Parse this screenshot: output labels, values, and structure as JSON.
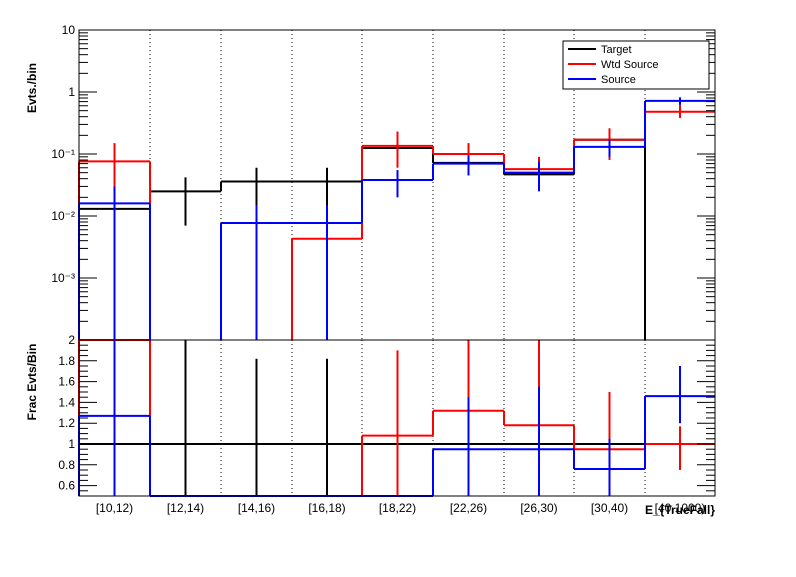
{
  "chart_data": {
    "type": "line",
    "categories": [
      "[10,12)",
      "[12,14)",
      "[14,16)",
      "[16,18)",
      "[18,22)",
      "[22,26)",
      "[26,30)",
      "[30,40)",
      "[40,1000)"
    ],
    "x_title": "E_{TrueFall}",
    "top_panel": {
      "ylabel": "Evts./bin",
      "yscale": "log",
      "ylim": [
        0.0001,
        10
      ],
      "y_tick_labels": [
        "10",
        "1",
        "10⁻¹",
        "10⁻²",
        "10⁻³"
      ],
      "y_tick_values": [
        10,
        1,
        0.1,
        0.01,
        0.001
      ],
      "series": [
        {
          "name": "Target",
          "color": "#000000",
          "values": [
            0.013,
            0.025,
            0.036,
            0.036,
            0.125,
            0.072,
            0.047,
            0.17,
            null
          ],
          "err_low": [
            0.013,
            0.007,
            0.0001,
            0.0001,
            null,
            null,
            null,
            null,
            null
          ],
          "err_high": [
            0.03,
            0.042,
            0.06,
            0.06,
            null,
            null,
            null,
            null,
            null
          ]
        },
        {
          "name": "Wtd Source",
          "color": "#ff0000",
          "values": [
            0.076,
            null,
            null,
            0.0043,
            0.135,
            0.1,
            0.057,
            0.17,
            0.48
          ],
          "err_low": [
            0.0001,
            null,
            null,
            null,
            0.06,
            0.06,
            0.03,
            0.08,
            0.38
          ],
          "err_high": [
            0.15,
            null,
            null,
            null,
            0.23,
            0.15,
            0.09,
            0.26,
            0.62
          ]
        },
        {
          "name": "Source",
          "color": "#0000ff",
          "values": [
            0.016,
            null,
            0.0077,
            0.0077,
            0.038,
            0.07,
            0.05,
            0.13,
            0.72
          ],
          "err_low": [
            0.0001,
            null,
            0.0001,
            0.0001,
            0.02,
            0.045,
            0.025,
            0.09,
            0.62
          ],
          "err_high": [
            0.03,
            null,
            0.015,
            0.015,
            0.055,
            0.095,
            0.075,
            0.17,
            0.82
          ]
        }
      ],
      "legend_position": "top-right"
    },
    "bottom_panel": {
      "ylabel": "Frac Evts/Bin",
      "ylim": [
        0.5,
        2.0
      ],
      "y_tick_labels": [
        "2",
        "1.8",
        "1.6",
        "1.4",
        "1.2",
        "1",
        "0.8",
        "0.6"
      ],
      "y_tick_values": [
        2.0,
        1.8,
        1.6,
        1.4,
        1.2,
        1.0,
        0.8,
        0.6
      ],
      "series": [
        {
          "name": "Target",
          "color": "#000000",
          "values": [
            1,
            1,
            1,
            1,
            1,
            1,
            1,
            1,
            1
          ],
          "err_low": [
            0.5,
            0.5,
            0.5,
            0.5,
            null,
            null,
            null,
            null,
            null
          ],
          "err_high": [
            2.0,
            2.0,
            1.82,
            1.82,
            null,
            null,
            null,
            null,
            null
          ]
        },
        {
          "name": "Wtd Source",
          "color": "#ff0000",
          "values": [
            2.0,
            0.5,
            0.5,
            0.5,
            1.08,
            1.32,
            1.18,
            0.95,
            1.0
          ],
          "err_low": [
            null,
            null,
            null,
            null,
            0.5,
            0.5,
            0.5,
            0.5,
            0.75
          ],
          "err_high": [
            null,
            null,
            null,
            null,
            1.9,
            2.0,
            2.0,
            1.5,
            1.17
          ]
        },
        {
          "name": "Source",
          "color": "#0000ff",
          "values": [
            1.27,
            0.5,
            0.5,
            0.5,
            0.5,
            0.95,
            0.95,
            0.76,
            1.46
          ],
          "err_low": [
            0.5,
            null,
            null,
            null,
            null,
            0.5,
            0.5,
            0.5,
            1.2
          ],
          "err_high": [
            2.0,
            null,
            null,
            null,
            null,
            1.45,
            1.55,
            1.05,
            1.75
          ]
        }
      ]
    }
  }
}
